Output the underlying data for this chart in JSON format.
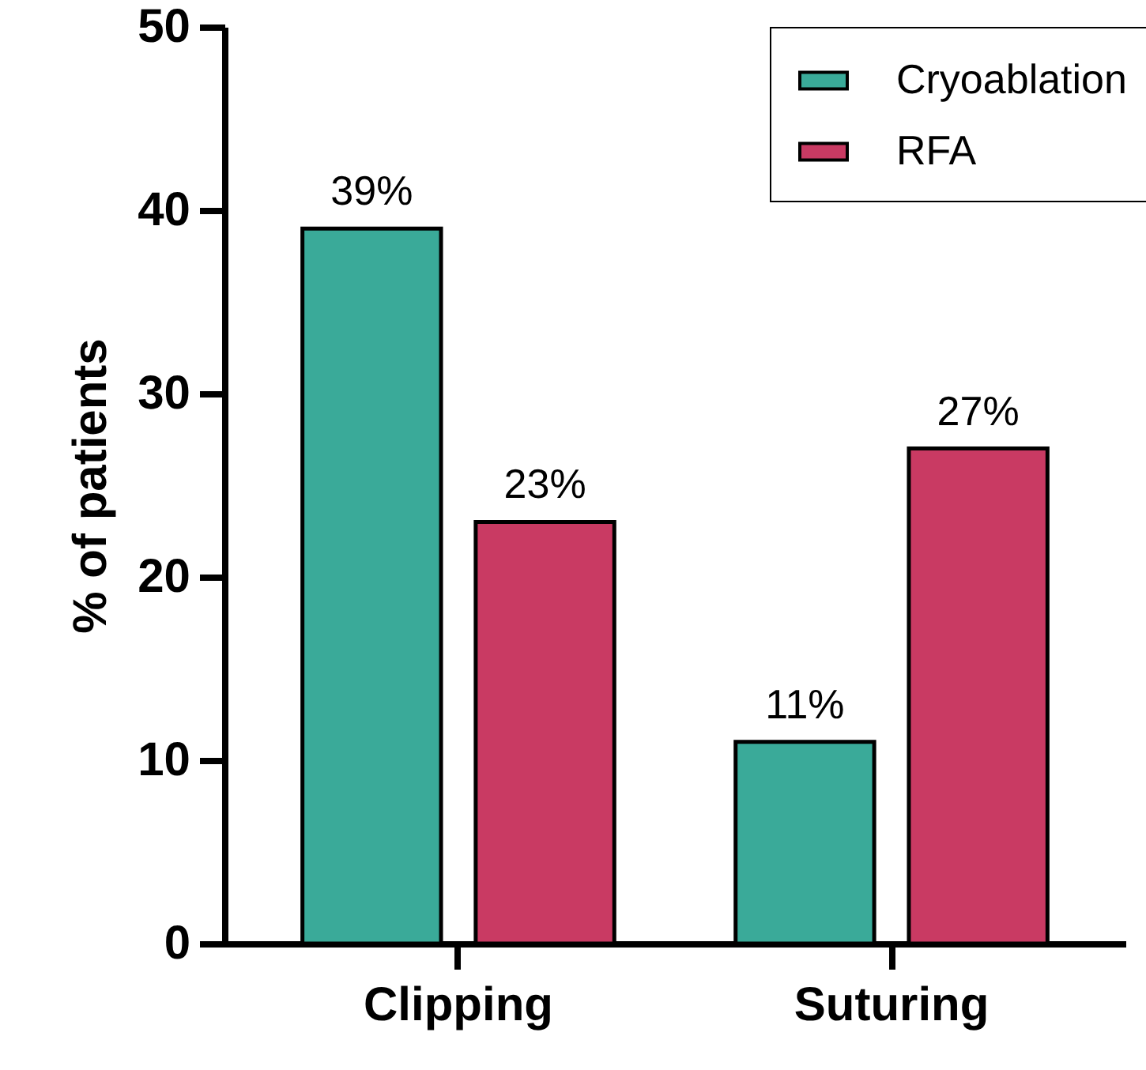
{
  "chart_data": {
    "type": "bar",
    "ylabel": "% of patients",
    "categories": [
      "Clipping",
      "Suturing"
    ],
    "series": [
      {
        "name": "Cryoablation",
        "color": "#3aaa99",
        "values": [
          39,
          11
        ],
        "value_labels": [
          "39%",
          "11%"
        ]
      },
      {
        "name": "RFA",
        "color": "#c93a63",
        "values": [
          23,
          27
        ],
        "value_labels": [
          "23%",
          "27%"
        ]
      }
    ],
    "ylim": [
      0,
      50
    ],
    "yticks": [
      0,
      10,
      20,
      30,
      40,
      50
    ],
    "grid": false,
    "legend": "top right"
  }
}
